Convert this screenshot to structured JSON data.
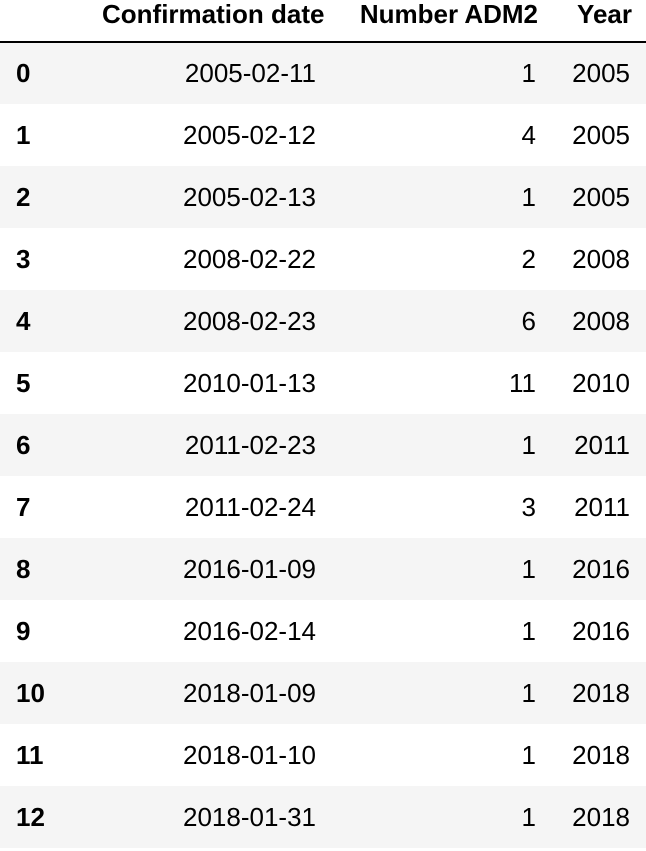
{
  "table": {
    "columns": {
      "index": "",
      "confirmation_date": "Confirmation date",
      "number_adm2": "Number ADM2",
      "year": "Year"
    },
    "rows": [
      {
        "index": "0",
        "confirmation_date": "2005-02-11",
        "number_adm2": "1",
        "year": "2005"
      },
      {
        "index": "1",
        "confirmation_date": "2005-02-12",
        "number_adm2": "4",
        "year": "2005"
      },
      {
        "index": "2",
        "confirmation_date": "2005-02-13",
        "number_adm2": "1",
        "year": "2005"
      },
      {
        "index": "3",
        "confirmation_date": "2008-02-22",
        "number_adm2": "2",
        "year": "2008"
      },
      {
        "index": "4",
        "confirmation_date": "2008-02-23",
        "number_adm2": "6",
        "year": "2008"
      },
      {
        "index": "5",
        "confirmation_date": "2010-01-13",
        "number_adm2": "11",
        "year": "2010"
      },
      {
        "index": "6",
        "confirmation_date": "2011-02-23",
        "number_adm2": "1",
        "year": "2011"
      },
      {
        "index": "7",
        "confirmation_date": "2011-02-24",
        "number_adm2": "3",
        "year": "2011"
      },
      {
        "index": "8",
        "confirmation_date": "2016-01-09",
        "number_adm2": "1",
        "year": "2016"
      },
      {
        "index": "9",
        "confirmation_date": "2016-02-14",
        "number_adm2": "1",
        "year": "2016"
      },
      {
        "index": "10",
        "confirmation_date": "2018-01-09",
        "number_adm2": "1",
        "year": "2018"
      },
      {
        "index": "11",
        "confirmation_date": "2018-01-10",
        "number_adm2": "1",
        "year": "2018"
      },
      {
        "index": "12",
        "confirmation_date": "2018-01-31",
        "number_adm2": "1",
        "year": "2018"
      }
    ]
  }
}
